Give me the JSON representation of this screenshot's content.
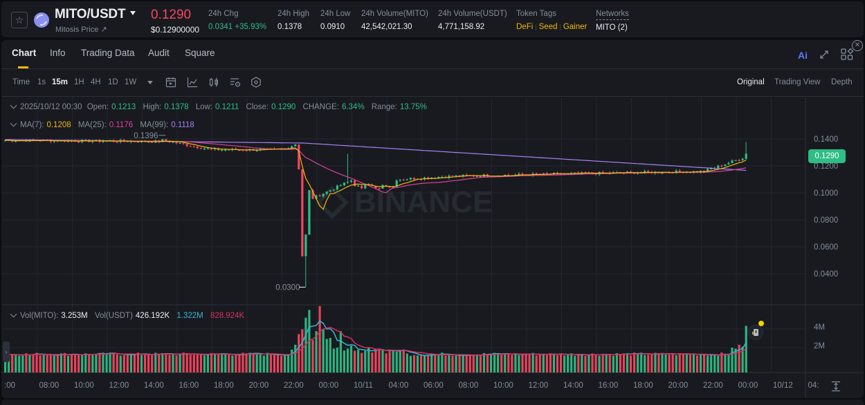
{
  "ticker": {
    "pair": "MITO/USDT",
    "subtitle": "Mitosis Price ↗",
    "last_price": "0.1290",
    "usd_price": "$0.12900000",
    "stats": [
      {
        "label": "24h Chg",
        "value": "0.0341 +35.93%",
        "color": "green"
      },
      {
        "label": "24h High",
        "value": "0.1378"
      },
      {
        "label": "24h Low",
        "value": "0.0910"
      },
      {
        "label": "24h Volume(MITO)",
        "value": "42,542,021.30"
      },
      {
        "label": "24h Volume(USDT)",
        "value": "4,771,158.92"
      }
    ],
    "token_tags_label": "Token Tags",
    "token_tags": [
      "DeFi",
      "Seed",
      "Gainer"
    ],
    "networks_label": "Networks",
    "networks_value": "MITO (2)"
  },
  "tabs": [
    "Chart",
    "Info",
    "Trading Data",
    "Audit",
    "Square"
  ],
  "active_tab": "Chart",
  "ai_label": "Ai",
  "toolbar": {
    "time_label": "Time",
    "intervals": [
      "1s",
      "15m",
      "1H",
      "4H",
      "1D",
      "1W"
    ],
    "active_interval": "15m",
    "views": [
      "Original",
      "Trading View",
      "Depth"
    ],
    "active_view": "Original"
  },
  "ohlc": {
    "date": "2025/10/12 00:30",
    "open_label": "Open:",
    "open": "0.1213",
    "high_label": "High:",
    "high": "0.1378",
    "low_label": "Low:",
    "low": "0.1211",
    "close_label": "Close:",
    "close": "0.1290",
    "change_label": "CHANGE:",
    "change": "6.34%",
    "range_label": "Range:",
    "range": "13.75%"
  },
  "ma": {
    "ma7_label": "MA(7):",
    "ma7": "0.1208",
    "ma25_label": "MA(25):",
    "ma25": "0.1176",
    "ma99_label": "MA(99):",
    "ma99": "0.1118"
  },
  "volume": {
    "vol_mito_label": "Vol(MITO):",
    "vol_mito": "3.253M",
    "vol_usdt_label": "Vol(USDT)",
    "vol_usdt": "426.192K",
    "ma1": "1.322M",
    "ma2": "828.924K"
  },
  "price_tag": "0.1290",
  "annotations": {
    "high_marker": "0.1396",
    "low_marker": "0.0300"
  },
  "watermark": "BINANCE",
  "colors": {
    "up": "#2ebd85",
    "down": "#f6465d",
    "ma7": "#f0b90b",
    "ma25": "#e040a0",
    "ma99": "#a982f5",
    "accent": "#f0b90b"
  },
  "chart_data": {
    "type": "candlestick",
    "price_axis": [
      "0.1400",
      "0.1200",
      "0.1000",
      "0.0800",
      "0.0600",
      "0.0400"
    ],
    "volume_axis": [
      "4M",
      "2M"
    ],
    "time_axis": [
      ":00",
      "08:00",
      "10:00",
      "12:00",
      "14:00",
      "16:00",
      "18:00",
      "20:00",
      "22:00",
      "00:00",
      "10/11",
      "04:00",
      "06:00",
      "08:00",
      "10:00",
      "12:00",
      "14:00",
      "16:00",
      "18:00",
      "20:00",
      "22:00",
      "00:00",
      "10/12",
      "04:"
    ],
    "series": [
      {
        "name": "MA(7)",
        "last": 0.1208
      },
      {
        "name": "MA(25)",
        "last": 0.1176
      },
      {
        "name": "MA(99)",
        "last": 0.1118
      }
    ],
    "key_points": {
      "pre_crash_high": 0.1396,
      "crash_low": 0.03,
      "current": 0.129
    }
  }
}
